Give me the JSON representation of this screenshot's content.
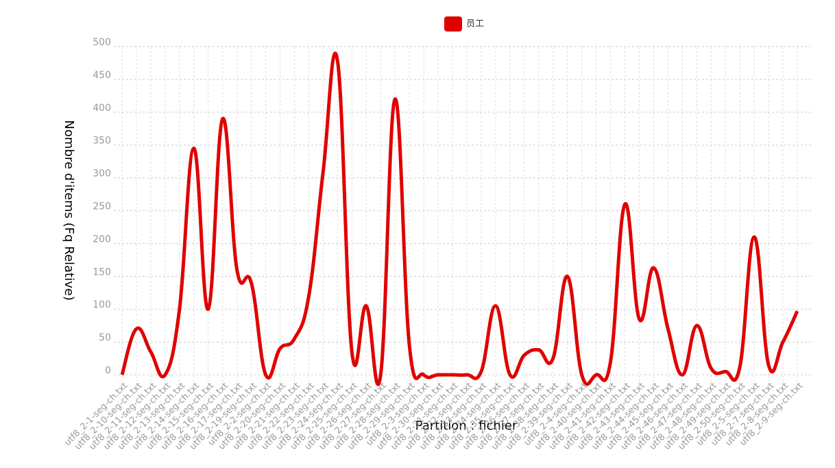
{
  "chart_data": {
    "type": "line",
    "xlabel": "Partition : fichier",
    "ylabel": "Nombre d'items (Fq Relative)",
    "categories": [
      "utf8_2-1-seg-ch.txt",
      "utf8_2-10-seg-ch.txt",
      "utf8_2-11-seg-ch.txt",
      "utf8_2-12-seg-ch.txt",
      "utf8_2-13-seg-ch.txt",
      "utf8_2-14-seg-ch.txt",
      "utf8_2-15-seg-ch.txt",
      "utf8_2-16-seg-ch.txt",
      "utf8_2-17-seg-ch.txt",
      "utf8_2-19-seg-ch.txt",
      "utf8_2-2-seg-ch.txt",
      "utf8_2-20-seg-ch.txt",
      "utf8_2-21-seg-ch.txt",
      "utf8_2-22-seg-ch.txt",
      "utf8_2-23-seg-ch.txt",
      "utf8_2-24-seg-ch.txt",
      "utf8_2-25-seg-ch.txt",
      "utf8_2-26-seg-ch.txt",
      "utf8_2-27-seg-ch.txt",
      "utf8_2-28-seg-ch.txt",
      "utf8_2-29-seg-ch.txt",
      "utf8_2-3-seg-ch.txt",
      "utf8_2-30-seg-ch.txt",
      "utf8_2-31-seg-ch.txt",
      "utf8_2-32-seg-ch.txt",
      "utf8_2-33-seg-ch.txt",
      "utf8_2-34-seg-ch.txt",
      "utf8_2-35-seg-ch.txt",
      "utf8_2-36-seg-ch.txt",
      "utf8_2-37-seg-ch.txt",
      "utf8_2-38-seg-ch.txt",
      "utf8_2-39-seg-ch.txt",
      "utf8_2-4-seg-ch.txt",
      "utf8_2-40-seg-ch.txt",
      "utf8_2-41-seg-ch.txt",
      "utf8_2-42-seg-ch.txt",
      "utf8_2-43-seg-ch.txt",
      "utf8_2-44-seg-ch.txt",
      "utf8_2-45-seg-ch.txt",
      "utf8_2-46-seg-ch.txt",
      "utf8_2-47-seg-ch.txt",
      "utf8_2-48-seg-ch.txt",
      "utf8_2-49-seg-ch.txt",
      "utf8_2-50-seg-ch.txt",
      "utf8_2-5-seg-ch.txt",
      "utf8_2-7-seg-ch.txt",
      "utf8_2-8-seg-ch.txt",
      "utf8_2-9-seg-ch.txt"
    ],
    "series": [
      {
        "name": "员工",
        "color": "#e00000",
        "values": [
          0,
          70,
          35,
          0,
          100,
          345,
          100,
          390,
          160,
          140,
          0,
          40,
          55,
          120,
          310,
          478,
          35,
          105,
          0,
          420,
          45,
          0,
          0,
          0,
          0,
          5,
          105,
          0,
          30,
          38,
          25,
          150,
          0,
          0,
          20,
          260,
          85,
          163,
          70,
          0,
          75,
          10,
          5,
          12,
          210,
          15,
          50,
          97
        ]
      }
    ],
    "ylim": [
      0,
      500
    ],
    "yticks": [
      0,
      50,
      100,
      150,
      200,
      250,
      300,
      350,
      400,
      450,
      500
    ],
    "grid": true
  }
}
